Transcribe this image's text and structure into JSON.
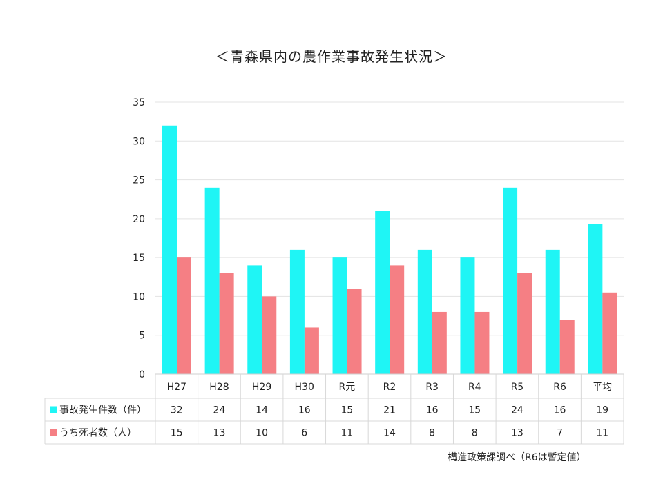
{
  "chart_data": {
    "type": "bar",
    "title": "＜青森県内の農作業事故発生状況＞",
    "categories": [
      "H27",
      "H28",
      "H29",
      "H30",
      "R元",
      "R2",
      "R3",
      "R4",
      "R5",
      "R6",
      "平均"
    ],
    "series": [
      {
        "name": "事故発生件数（件）",
        "color": "#1ff5f5",
        "values": [
          32,
          24,
          14,
          16,
          15,
          21,
          16,
          15,
          24,
          16,
          19.3
        ],
        "table_values": [
          "32",
          "24",
          "14",
          "16",
          "15",
          "21",
          "16",
          "15",
          "24",
          "16",
          "19"
        ]
      },
      {
        "name": "うち死者数（人）",
        "color": "#f57f84",
        "values": [
          15,
          13,
          10,
          6,
          11,
          14,
          8,
          8,
          13,
          7,
          10.5
        ],
        "table_values": [
          "15",
          "13",
          "10",
          "6",
          "11",
          "14",
          "8",
          "8",
          "13",
          "7",
          "11"
        ]
      }
    ],
    "ylim": [
      0,
      35
    ],
    "yticks": [
      0,
      5,
      10,
      15,
      20,
      25,
      30,
      35
    ],
    "grid": true,
    "legend": "data-table"
  },
  "source_note": "構造政策課調べ（R6は暫定値）"
}
